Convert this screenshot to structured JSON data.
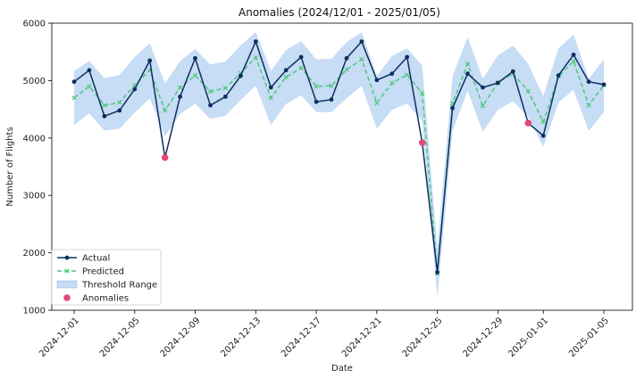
{
  "chart_data": {
    "type": "line",
    "title": "Anomalies (2024/12/01 - 2025/01/05)",
    "xlabel": "Date",
    "ylabel": "Number of Flights",
    "ylim": [
      1000,
      6000
    ],
    "y_ticks": [
      1000,
      2000,
      3000,
      4000,
      5000,
      6000
    ],
    "x_start": "2024-12-01",
    "x_ticks": [
      "2024-12-01",
      "2024-12-05",
      "2024-12-09",
      "2024-12-13",
      "2024-12-17",
      "2024-12-21",
      "2024-12-25",
      "2024-12-29",
      "2025-01-01",
      "2025-01-05"
    ],
    "dates": [
      "2024-12-01",
      "2024-12-02",
      "2024-12-03",
      "2024-12-04",
      "2024-12-05",
      "2024-12-06",
      "2024-12-07",
      "2024-12-08",
      "2024-12-09",
      "2024-12-10",
      "2024-12-11",
      "2024-12-12",
      "2024-12-13",
      "2024-12-14",
      "2024-12-15",
      "2024-12-16",
      "2024-12-17",
      "2024-12-18",
      "2024-12-19",
      "2024-12-20",
      "2024-12-21",
      "2024-12-22",
      "2024-12-23",
      "2024-12-24",
      "2024-12-25",
      "2024-12-26",
      "2024-12-27",
      "2024-12-28",
      "2024-12-29",
      "2024-12-30",
      "2024-12-31",
      "2025-01-01",
      "2025-01-02",
      "2025-01-03",
      "2025-01-04",
      "2025-01-05"
    ],
    "series": [
      {
        "name": "Actual",
        "color": "#0d2f5e",
        "marker": "circle",
        "values": [
          4980,
          5180,
          4380,
          4480,
          4850,
          5350,
          3660,
          4720,
          5390,
          4570,
          4720,
          5080,
          5680,
          4880,
          5180,
          5410,
          4630,
          4670,
          5390,
          5680,
          5010,
          5120,
          5410,
          3920,
          1660,
          4520,
          5120,
          4880,
          4960,
          5160,
          4260,
          4040,
          5090,
          5450,
          4980,
          4930
        ]
      },
      {
        "name": "Predicted",
        "color": "#4dc97a",
        "marker": "x",
        "dashed": true,
        "values": [
          4700,
          4900,
          4570,
          4620,
          4920,
          5180,
          4480,
          4880,
          5090,
          4810,
          4870,
          5130,
          5400,
          4700,
          5060,
          5220,
          4900,
          4910,
          5190,
          5370,
          4610,
          4960,
          5100,
          4780,
          1640,
          4600,
          5290,
          4560,
          4970,
          5120,
          4820,
          4280,
          5070,
          5340,
          4570,
          4920
        ]
      },
      {
        "name": "Threshold Range",
        "color": "#a9c9f0",
        "type": "band",
        "lower": [
          4230,
          4430,
          4130,
          4160,
          4440,
          4690,
          4030,
          4420,
          4600,
          4330,
          4390,
          4660,
          4910,
          4230,
          4590,
          4740,
          4450,
          4450,
          4690,
          4910,
          4160,
          4490,
          4600,
          4300,
          1230,
          4120,
          4820,
          4110,
          4490,
          4640,
          4370,
          3850,
          4620,
          4840,
          4120,
          4450
        ],
        "upper": [
          5170,
          5340,
          5040,
          5100,
          5410,
          5650,
          4950,
          5340,
          5550,
          5280,
          5330,
          5610,
          5850,
          5170,
          5530,
          5690,
          5370,
          5380,
          5670,
          5840,
          5080,
          5430,
          5560,
          5260,
          2080,
          5080,
          5760,
          5030,
          5440,
          5610,
          5290,
          4730,
          5560,
          5800,
          5030,
          5370
        ]
      },
      {
        "name": "Anomalies",
        "color": "#e0497a",
        "marker": "dot",
        "points": [
          {
            "date": "2024-12-07",
            "y": 3660
          },
          {
            "date": "2024-12-24",
            "y": 3920
          },
          {
            "date": "2024-12-31",
            "y": 4260
          }
        ]
      }
    ],
    "legend_position": "lower-left",
    "grid": false
  }
}
